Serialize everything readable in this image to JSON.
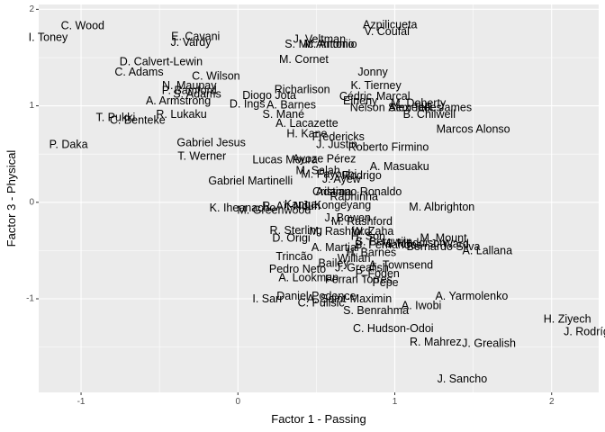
{
  "chart_data": {
    "type": "scatter",
    "xlabel": "Factor 1 - Passing",
    "ylabel": "Factor 3 - Physical",
    "xlim": [
      -1.27,
      2.3
    ],
    "ylim": [
      -1.97,
      2.05
    ],
    "xticks": [
      -1,
      0,
      1,
      2
    ],
    "yticks": [
      -1,
      0,
      1,
      2
    ],
    "grid": true,
    "panel_background": "#ebebeb",
    "gridline_color": "#ffffff",
    "points": [
      {
        "label": "C. Wood",
        "x": -0.99,
        "y": 1.83
      },
      {
        "label": "I. Toney",
        "x": -1.21,
        "y": 1.71
      },
      {
        "label": "E. Cavani",
        "x": -0.27,
        "y": 1.72
      },
      {
        "label": "J. Vardy",
        "x": -0.3,
        "y": 1.66
      },
      {
        "label": "J. Veltman",
        "x": 0.52,
        "y": 1.69
      },
      {
        "label": "Azpilicueta",
        "x": 0.97,
        "y": 1.84
      },
      {
        "label": "V. Coufal",
        "x": 0.95,
        "y": 1.77
      },
      {
        "label": "S. Mc Antonio",
        "x": 0.52,
        "y": 1.64
      },
      {
        "label": "M. Antonio",
        "x": 0.59,
        "y": 1.64
      },
      {
        "label": "D. Calvert-Lewin",
        "x": -0.49,
        "y": 1.46
      },
      {
        "label": "M. Cornet",
        "x": 0.42,
        "y": 1.48
      },
      {
        "label": "C. Adams",
        "x": -0.63,
        "y": 1.35
      },
      {
        "label": "C. Wilson",
        "x": -0.14,
        "y": 1.31
      },
      {
        "label": "Jonny",
        "x": 0.86,
        "y": 1.35
      },
      {
        "label": "N. Maupay",
        "x": -0.31,
        "y": 1.21
      },
      {
        "label": "K. Tierney",
        "x": 0.88,
        "y": 1.21
      },
      {
        "label": "P. Bamford",
        "x": -0.31,
        "y": 1.16
      },
      {
        "label": "S. Adams",
        "x": -0.26,
        "y": 1.12
      },
      {
        "label": "Richarlison",
        "x": 0.41,
        "y": 1.17
      },
      {
        "label": "Diogo Jota",
        "x": 0.2,
        "y": 1.11
      },
      {
        "label": "Cédric",
        "x": 0.75,
        "y": 1.1
      },
      {
        "label": "Marçal",
        "x": 0.99,
        "y": 1.1
      },
      {
        "label": "A. Armstrong",
        "x": -0.38,
        "y": 1.05
      },
      {
        "label": "D. Ings",
        "x": 0.06,
        "y": 1.02
      },
      {
        "label": "Elneny",
        "x": 0.78,
        "y": 1.05
      },
      {
        "label": "A. Barnes",
        "x": 0.34,
        "y": 1.01
      },
      {
        "label": "M. Doherty",
        "x": 1.15,
        "y": 1.03
      },
      {
        "label": "Nelson Semedo",
        "x": 0.97,
        "y": 0.98
      },
      {
        "label": "Alex Telles",
        "x": 1.13,
        "y": 0.98
      },
      {
        "label": "R. James",
        "x": 1.34,
        "y": 0.98
      },
      {
        "label": "T. Pukki",
        "x": -0.78,
        "y": 0.88
      },
      {
        "label": "R. Lukaku",
        "x": -0.36,
        "y": 0.91
      },
      {
        "label": "C. Benteke",
        "x": -0.64,
        "y": 0.85
      },
      {
        "label": "S. Mané",
        "x": 0.29,
        "y": 0.91
      },
      {
        "label": "B. Chilwell",
        "x": 1.22,
        "y": 0.91
      },
      {
        "label": "A. Lacazette",
        "x": 0.44,
        "y": 0.82
      },
      {
        "label": "Marcos Alonso",
        "x": 1.5,
        "y": 0.76
      },
      {
        "label": "H. Kane",
        "x": 0.44,
        "y": 0.71
      },
      {
        "label": "Fredericks",
        "x": 0.64,
        "y": 0.68
      },
      {
        "label": "P. Daka",
        "x": -1.08,
        "y": 0.6
      },
      {
        "label": "Gabriel Jesus",
        "x": -0.17,
        "y": 0.62
      },
      {
        "label": "J. Justin",
        "x": 0.63,
        "y": 0.6
      },
      {
        "label": "Roberto Firmino",
        "x": 0.96,
        "y": 0.57
      },
      {
        "label": "T. Werner",
        "x": -0.23,
        "y": 0.48
      },
      {
        "label": "Lucas Moura",
        "x": 0.3,
        "y": 0.44
      },
      {
        "label": "Ayoze Pérez",
        "x": 0.55,
        "y": 0.45
      },
      {
        "label": "A. Masuaku",
        "x": 1.03,
        "y": 0.37
      },
      {
        "label": "M. Salah",
        "x": 0.51,
        "y": 0.33
      },
      {
        "label": "M. Fayoubi",
        "x": 0.58,
        "y": 0.29
      },
      {
        "label": "Rodrigo",
        "x": 0.79,
        "y": 0.28
      },
      {
        "label": "Gabriel Martinelli",
        "x": 0.08,
        "y": 0.22
      },
      {
        "label": "J. Ayew",
        "x": 0.66,
        "y": 0.24
      },
      {
        "label": "Adama",
        "x": 0.61,
        "y": 0.11
      },
      {
        "label": "Cristiano Ronaldo",
        "x": 0.76,
        "y": 0.11
      },
      {
        "label": "Raphinha",
        "x": 0.74,
        "y": 0.06
      },
      {
        "label": "R. Aït-Nouri",
        "x": 0.34,
        "y": -0.04
      },
      {
        "label": "Kanga",
        "x": 0.4,
        "y": -0.02
      },
      {
        "label": "J. Kongeyang",
        "x": 0.63,
        "y": -0.03
      },
      {
        "label": "K. Iheanacho",
        "x": 0.03,
        "y": -0.06
      },
      {
        "label": "M. Greenwood",
        "x": 0.23,
        "y": -0.08
      },
      {
        "label": "M. Albrighton",
        "x": 1.3,
        "y": -0.05
      },
      {
        "label": "J. Bowen",
        "x": 0.7,
        "y": -0.16
      },
      {
        "label": "M. Rashford",
        "x": 0.79,
        "y": -0.2
      },
      {
        "label": "R. Sterling",
        "x": 0.37,
        "y": -0.29
      },
      {
        "label": "M. Rashford",
        "x": 0.65,
        "y": -0.3
      },
      {
        "label": "W. Zaha",
        "x": 0.86,
        "y": -0.3
      },
      {
        "label": "D. Origi",
        "x": 0.34,
        "y": -0.37
      },
      {
        "label": "H. Son",
        "x": 0.83,
        "y": -0.35
      },
      {
        "label": "M. Mount",
        "x": 1.31,
        "y": -0.37
      },
      {
        "label": "Bernardo Silva",
        "x": 1.31,
        "y": -0.46
      },
      {
        "label": "S. Bergwijn",
        "x": 0.93,
        "y": -0.41
      },
      {
        "label": "M. Maddison",
        "x": 1.12,
        "y": -0.42
      },
      {
        "label": "J. Ward",
        "x": 1.35,
        "y": -0.43
      },
      {
        "label": "A. Martial",
        "x": 0.62,
        "y": -0.47
      },
      {
        "label": "B. Fernandes",
        "x": 0.96,
        "y": -0.44
      },
      {
        "label": "A. Lallana",
        "x": 1.59,
        "y": -0.5
      },
      {
        "label": "H. Barnes",
        "x": 0.85,
        "y": -0.52
      },
      {
        "label": "Trincão",
        "x": 0.36,
        "y": -0.56
      },
      {
        "label": "Willian",
        "x": 0.74,
        "y": -0.58
      },
      {
        "label": "Pedro Neto",
        "x": 0.38,
        "y": -0.69
      },
      {
        "label": "A. Townsend",
        "x": 1.04,
        "y": -0.65
      },
      {
        "label": "Bailey",
        "x": 0.61,
        "y": -0.63
      },
      {
        "label": "J. Grealish",
        "x": 0.79,
        "y": -0.68
      },
      {
        "label": "P. Foden",
        "x": 0.89,
        "y": -0.74
      },
      {
        "label": "A. Lookman",
        "x": 0.45,
        "y": -0.78
      },
      {
        "label": "Ferran Torres",
        "x": 0.77,
        "y": -0.8
      },
      {
        "label": "Pepe",
        "x": 0.94,
        "y": -0.83
      },
      {
        "label": "I. Sarr",
        "x": 0.19,
        "y": -1.0
      },
      {
        "label": "Daniel Podence",
        "x": 0.5,
        "y": -0.97
      },
      {
        "label": "A. Saint-Maximin",
        "x": 0.71,
        "y": -1.0
      },
      {
        "label": "A. Yarmolenko",
        "x": 1.49,
        "y": -0.97
      },
      {
        "label": "C. Pulisic",
        "x": 0.53,
        "y": -1.04
      },
      {
        "label": "A. Iwobi",
        "x": 1.17,
        "y": -1.07
      },
      {
        "label": "S. Benrahma",
        "x": 0.88,
        "y": -1.12
      },
      {
        "label": "H. Ziyech",
        "x": 2.1,
        "y": -1.21
      },
      {
        "label": "J. Rodríguez",
        "x": 2.28,
        "y": -1.34
      },
      {
        "label": "C. Hudson-Odoi",
        "x": 0.99,
        "y": -1.31
      },
      {
        "label": "R. Mahrez",
        "x": 1.26,
        "y": -1.45
      },
      {
        "label": "J. Grealish",
        "x": 1.6,
        "y": -1.46
      },
      {
        "label": "J. Sancho",
        "x": 1.43,
        "y": -1.83
      }
    ]
  }
}
